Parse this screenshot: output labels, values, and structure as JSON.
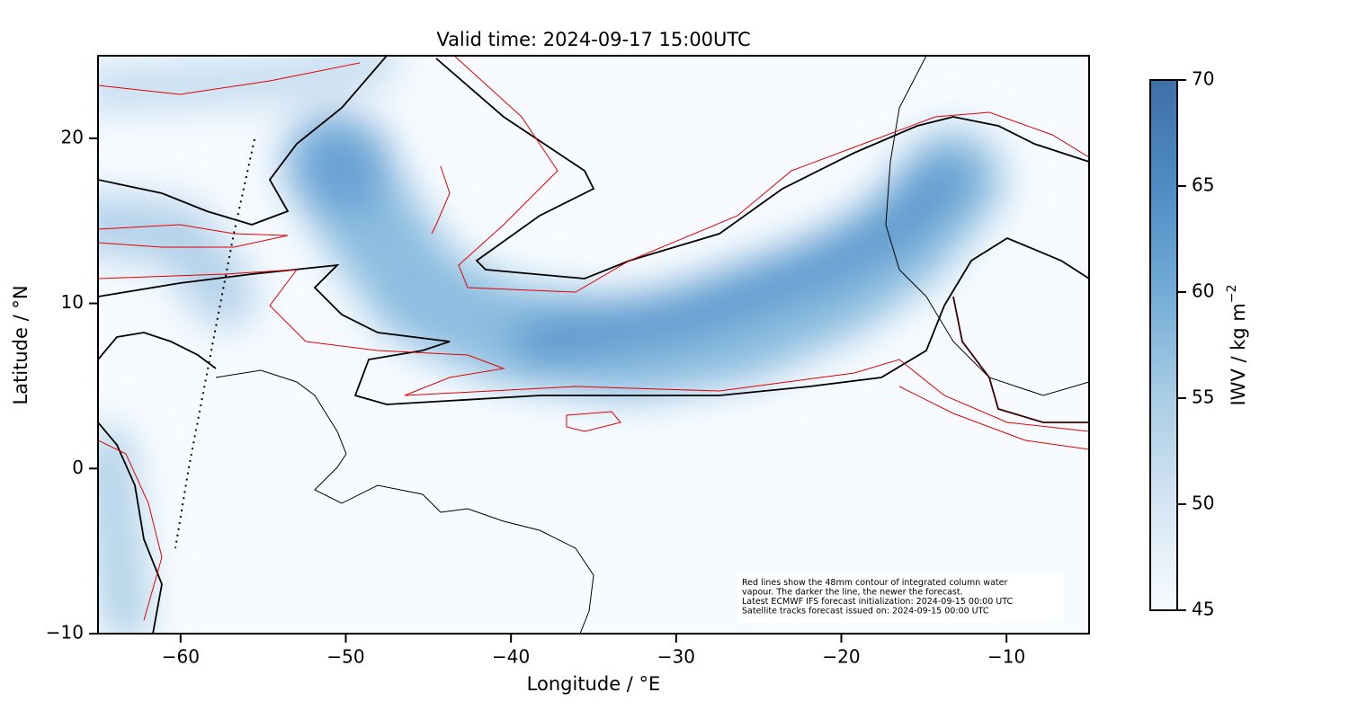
{
  "chart_data": {
    "type": "map",
    "title": "Valid time: 2024-09-17 15:00UTC",
    "x_label": "Longitude / °E",
    "y_label": "Latitude / °N",
    "xlim": [
      -65,
      -5
    ],
    "ylim": [
      -10,
      25
    ],
    "xticks": [
      {
        "value": -60,
        "label": "−60"
      },
      {
        "value": -50,
        "label": "−50"
      },
      {
        "value": -40,
        "label": "−40"
      },
      {
        "value": -30,
        "label": "−30"
      },
      {
        "value": -20,
        "label": "−20"
      },
      {
        "value": -10,
        "label": "−10"
      }
    ],
    "yticks": [
      {
        "value": -10,
        "label": "−10"
      },
      0,
      10,
      20
    ],
    "colorbar": {
      "label": "IWV / kg m",
      "label_superscript": "−2",
      "lim": [
        45,
        70
      ],
      "ticks": [
        45,
        50,
        55,
        60,
        65,
        70
      ],
      "colors": [
        "#f7fbff",
        "#d6e6f4",
        "#a9cde5",
        "#72acd6",
        "#4f8cc4",
        "#3f6fa6"
      ]
    },
    "annotation": [
      "Red lines show the 48mm contour of integrated column water",
      "vapour. The darker the line, the newer the forecast.",
      "Latest ECMWF IFS forecast initialization: 2024-09-15 00:00 UTC",
      "Satellite tracks forecast issued on: 2024-09-15 00:00 UTC"
    ]
  }
}
